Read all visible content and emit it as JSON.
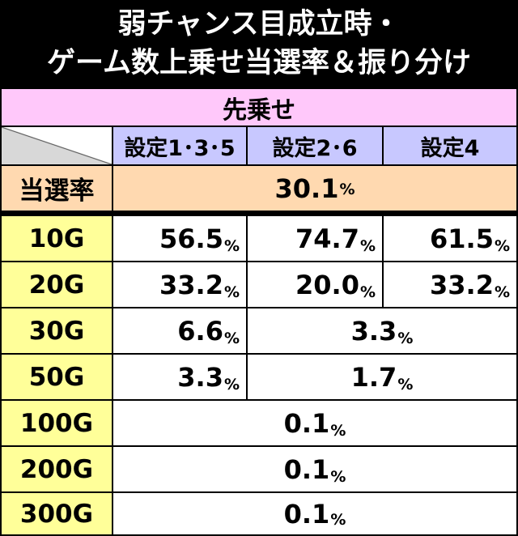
{
  "title": {
    "line1": "弱チャンス目成立時・",
    "line2": "ゲーム数上乗せ当選率＆振り分け"
  },
  "table": {
    "section_label": "先乗せ",
    "settings": [
      "設定1･3･5",
      "設定2･6",
      "設定4"
    ],
    "win_rate": {
      "label": "当選率",
      "value": "30.1",
      "unit": "%"
    },
    "rows": [
      {
        "label": "10G",
        "values": [
          "56.5",
          "74.7",
          "61.5"
        ]
      },
      {
        "label": "20G",
        "values": [
          "33.2",
          "20.0",
          "33.2"
        ]
      },
      {
        "label": "30G",
        "values": [
          "6.6",
          "3.3"
        ]
      },
      {
        "label": "50G",
        "values": [
          "3.3",
          "1.7"
        ]
      },
      {
        "label": "100G",
        "values": [
          "0.1"
        ]
      },
      {
        "label": "200G",
        "values": [
          "0.1"
        ]
      },
      {
        "label": "300G",
        "values": [
          "0.1"
        ]
      }
    ],
    "unit": "%"
  },
  "colors": {
    "background": "#000000",
    "header_pink": "#ffc8fa",
    "setting_blue": "#c8c8ff",
    "rate_orange": "#ffd9b0",
    "label_yellow": "#ffff99",
    "cell_white": "#ffffff"
  }
}
